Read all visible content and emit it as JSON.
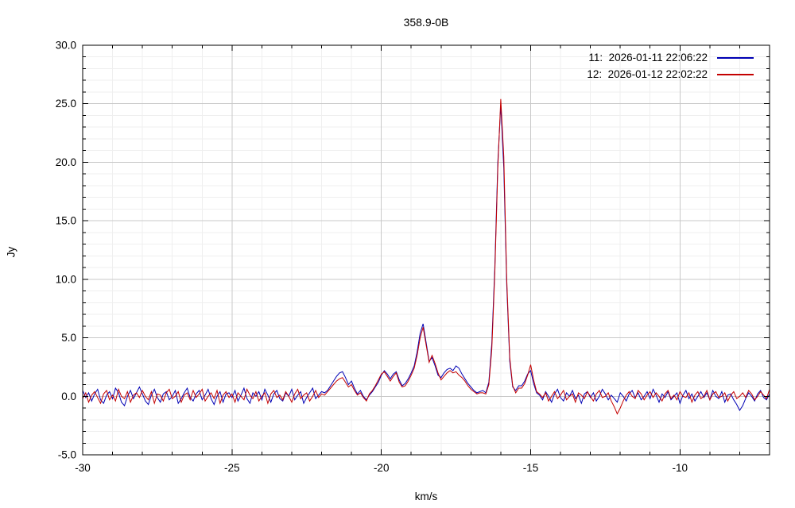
{
  "chart_data": {
    "type": "line",
    "title": "358.9-0B",
    "xlabel": "km/s",
    "ylabel": "Jy",
    "xlim": [
      -30,
      -7
    ],
    "ylim": [
      -5,
      30
    ],
    "grid": {
      "major_color": "#c8c8c8",
      "minor_color": "#efefef",
      "minor_on": true
    },
    "axis_color": "#000000",
    "background": "#ffffff",
    "legend_position": "top-right-inside",
    "x_ticks": [
      {
        "v": -30,
        "label": "-30"
      },
      {
        "v": -25,
        "label": "-25"
      },
      {
        "v": -20,
        "label": "-20"
      },
      {
        "v": -15,
        "label": "-15"
      },
      {
        "v": -10,
        "label": "-10"
      }
    ],
    "y_ticks": [
      {
        "v": -5,
        "label": "-5.0"
      },
      {
        "v": 0,
        "label": "0.0"
      },
      {
        "v": 5,
        "label": "5.0"
      },
      {
        "v": 10,
        "label": "10.0"
      },
      {
        "v": 15,
        "label": "15.0"
      },
      {
        "v": 20,
        "label": "20.0"
      },
      {
        "v": 25,
        "label": "25.0"
      },
      {
        "v": 30,
        "label": "30.0"
      }
    ],
    "x_minor_step": 1,
    "y_minor_step": 1,
    "x_start": -30.0,
    "x_step": 0.1,
    "series": [
      {
        "name": "11:  2026-01-11 22:06:22",
        "color": "#0000b4",
        "values": [
          0.5,
          -0.1,
          0.3,
          -0.4,
          0.2,
          0.6,
          -0.3,
          -0.6,
          0.1,
          0.4,
          -0.2,
          0.7,
          0.3,
          -0.5,
          -0.8,
          0.0,
          0.5,
          -0.2,
          0.3,
          0.8,
          0.2,
          -0.4,
          -0.7,
          0.1,
          0.6,
          -0.1,
          -0.5,
          0.2,
          0.4,
          -0.3,
          0.0,
          0.5,
          -0.6,
          -0.2,
          0.3,
          0.7,
          -0.1,
          -0.4,
          0.2,
          0.5,
          -0.3,
          0.1,
          0.6,
          -0.2,
          -0.7,
          0.0,
          0.4,
          -0.5,
          0.2,
          0.3,
          -0.1,
          0.5,
          -0.4,
          0.1,
          0.7,
          -0.2,
          -0.6,
          0.3,
          0.0,
          0.4,
          -0.3,
          0.6,
          0.1,
          -0.5,
          0.2,
          0.5,
          -0.2,
          -0.4,
          0.3,
          0.0,
          0.6,
          -0.3,
          0.1,
          0.4,
          -0.6,
          -0.1,
          0.3,
          0.7,
          -0.2,
          0.1,
          0.4,
          0.3,
          0.5,
          0.9,
          1.3,
          1.7,
          2.0,
          2.1,
          1.6,
          1.0,
          1.3,
          0.7,
          0.2,
          0.5,
          0.0,
          -0.3,
          0.1,
          0.4,
          0.8,
          1.2,
          1.8,
          2.2,
          1.9,
          1.5,
          1.9,
          2.1,
          1.4,
          0.9,
          1.1,
          1.5,
          2.0,
          2.6,
          3.8,
          5.4,
          6.2,
          4.6,
          3.0,
          3.3,
          2.6,
          1.8,
          1.6,
          2.0,
          2.3,
          2.4,
          2.2,
          2.6,
          2.4,
          1.9,
          1.5,
          1.1,
          0.8,
          0.5,
          0.3,
          0.4,
          0.5,
          0.3,
          1.2,
          4.5,
          11.0,
          20.0,
          24.9,
          19.5,
          9.5,
          3.0,
          0.8,
          0.5,
          0.9,
          0.9,
          1.3,
          1.9,
          2.2,
          1.1,
          0.3,
          0.1,
          -0.3,
          0.4,
          0.0,
          -0.5,
          0.2,
          0.6,
          -0.1,
          -0.4,
          0.3,
          0.0,
          0.5,
          -0.2,
          0.1,
          -0.6,
          0.2,
          0.4,
          -0.1,
          0.3,
          -0.4,
          0.0,
          0.6,
          0.2,
          -0.3,
          0.1,
          -0.2,
          -0.5,
          0.3,
          0.0,
          -0.4,
          0.2,
          0.5,
          -0.1,
          0.3,
          -0.3,
          0.0,
          0.4,
          -0.2,
          0.6,
          0.1,
          -0.5,
          0.2,
          -0.1,
          0.4,
          -0.3,
          0.0,
          0.3,
          -0.6,
          0.1,
          0.5,
          -0.2,
          0.2,
          -0.4,
          0.0,
          0.4,
          -0.1,
          0.3,
          -0.3,
          0.5,
          0.0,
          -0.2,
          0.4,
          -0.5,
          0.1,
          0.2,
          -0.3,
          -0.7,
          -1.2,
          -0.8,
          -0.2,
          0.3,
          0.0,
          -0.4,
          0.2,
          0.5,
          -0.1,
          -0.3,
          0.2
        ]
      },
      {
        "name": "12:  2026-01-12 22:02:22",
        "color": "#c40000",
        "values": [
          -0.2,
          0.3,
          -0.5,
          0.1,
          0.4,
          -0.1,
          -0.6,
          0.2,
          0.5,
          -0.3,
          0.1,
          -0.4,
          0.6,
          0.0,
          -0.2,
          0.4,
          -0.5,
          0.1,
          0.3,
          -0.1,
          0.5,
          0.0,
          -0.3,
          0.4,
          -0.6,
          0.2,
          0.1,
          -0.4,
          0.3,
          0.6,
          -0.2,
          0.0,
          0.4,
          -0.5,
          0.1,
          0.3,
          -0.3,
          0.5,
          -0.1,
          0.2,
          0.6,
          -0.4,
          0.0,
          0.3,
          -0.2,
          0.5,
          -0.6,
          0.1,
          0.4,
          -0.1,
          0.2,
          -0.5,
          0.3,
          0.0,
          -0.3,
          0.6,
          0.1,
          -0.2,
          0.4,
          -0.4,
          0.0,
          0.3,
          -0.6,
          0.2,
          0.5,
          -0.1,
          0.1,
          -0.3,
          0.4,
          0.0,
          -0.5,
          0.2,
          0.6,
          -0.2,
          0.1,
          0.3,
          -0.4,
          0.0,
          0.5,
          -0.1,
          0.2,
          0.1,
          0.4,
          0.7,
          1.0,
          1.3,
          1.5,
          1.6,
          1.2,
          0.8,
          1.0,
          0.5,
          0.1,
          0.3,
          -0.1,
          -0.4,
          0.2,
          0.5,
          0.9,
          1.4,
          1.9,
          2.1,
          1.7,
          1.3,
          1.7,
          2.0,
          1.2,
          0.8,
          0.9,
          1.3,
          1.8,
          2.4,
          3.5,
          5.0,
          5.9,
          4.4,
          2.9,
          3.5,
          2.8,
          2.0,
          1.4,
          1.7,
          2.0,
          2.2,
          2.0,
          2.1,
          1.8,
          1.6,
          1.3,
          0.9,
          0.6,
          0.4,
          0.2,
          0.3,
          0.3,
          0.2,
          1.0,
          4.0,
          10.5,
          19.5,
          25.4,
          20.5,
          10.0,
          3.3,
          0.9,
          0.3,
          0.7,
          0.7,
          1.1,
          1.8,
          2.7,
          1.4,
          0.4,
          0.2,
          -0.1,
          0.3,
          -0.4,
          0.0,
          0.4,
          -0.2,
          0.1,
          0.5,
          -0.3,
          0.0,
          0.2,
          -0.5,
          0.3,
          0.1,
          -0.2,
          0.4,
          0.0,
          -0.4,
          0.2,
          0.5,
          -0.1,
          0.0,
          0.3,
          -0.4,
          -0.9,
          -1.5,
          -1.0,
          -0.4,
          0.1,
          0.4,
          0.0,
          -0.2,
          0.5,
          0.2,
          -0.3,
          0.1,
          0.4,
          -0.1,
          0.3,
          0.0,
          -0.4,
          0.2,
          0.5,
          -0.2,
          0.1,
          -0.3,
          0.4,
          0.0,
          -0.1,
          0.3,
          -0.5,
          0.1,
          0.4,
          -0.2,
          0.0,
          0.5,
          -0.3,
          0.2,
          0.4,
          -0.1,
          0.0,
          0.3,
          -0.4,
          0.1,
          0.4,
          -0.2,
          0.0,
          0.3,
          -0.1,
          0.5,
          0.2,
          -0.3,
          0.0,
          0.4,
          0.1,
          -0.2,
          0.6
        ]
      }
    ]
  }
}
